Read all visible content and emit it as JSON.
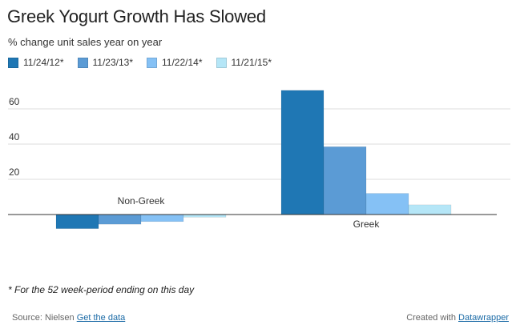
{
  "title": "Greek Yogurt Growth Has Slowed",
  "subtitle": "% change unit sales year on year",
  "legend": [
    {
      "label": "11/24/12*",
      "color": "#1f77b4"
    },
    {
      "label": "11/23/13*",
      "color": "#5b9bd5"
    },
    {
      "label": "11/22/14*",
      "color": "#85c1f5"
    },
    {
      "label": "11/21/15*",
      "color": "#b5e6f7"
    }
  ],
  "chart_data": {
    "type": "bar",
    "categories": [
      "Non-Greek",
      "Greek"
    ],
    "series": [
      {
        "name": "11/24/12*",
        "color": "#1f77b4",
        "values": [
          -8,
          70.5
        ]
      },
      {
        "name": "11/23/13*",
        "color": "#5b9bd5",
        "values": [
          -5.5,
          38.5
        ]
      },
      {
        "name": "11/22/14*",
        "color": "#85c1f5",
        "values": [
          -4,
          12
        ]
      },
      {
        "name": "11/21/15*",
        "color": "#b5e6f7",
        "values": [
          -1.5,
          5.5
        ]
      }
    ],
    "yticks": [
      20,
      40,
      60
    ],
    "ylim": [
      -20,
      70
    ],
    "grid": true
  },
  "footnote": "* For the 52 week-period ending on this day",
  "footer": {
    "source_label": "Source: Nielsen",
    "get_data_label": "Get the data",
    "created_label": "Created with",
    "datawrapper_label": "Datawrapper"
  }
}
